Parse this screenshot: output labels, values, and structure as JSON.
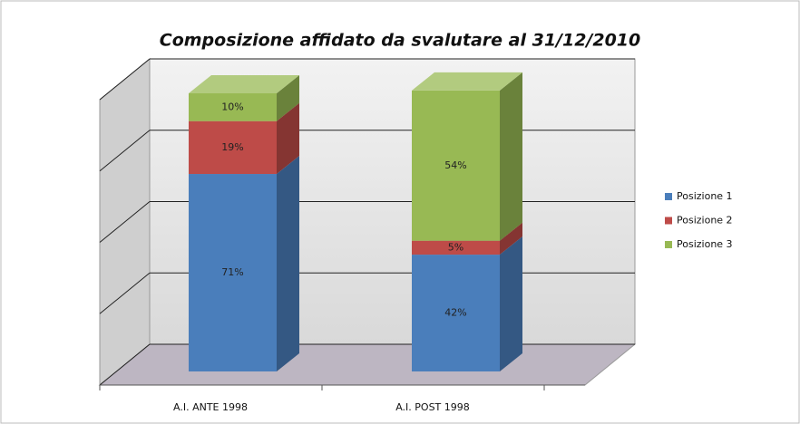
{
  "chart_data": {
    "type": "bar3d_stacked",
    "title": "Composizione affidato da svalutare al 31/12/2010",
    "categories": [
      "A.I. ANTE 1998",
      "A.I. POST 1998"
    ],
    "series": [
      {
        "name": "Posizione 1",
        "color": "#4a7ebb",
        "values": [
          71,
          42
        ],
        "value_labels": [
          "71%",
          "42%"
        ]
      },
      {
        "name": "Posizione 2",
        "color": "#be4b48",
        "values": [
          19,
          5
        ],
        "value_labels": [
          "19%",
          "5%"
        ]
      },
      {
        "name": "Posizione 3",
        "color": "#98b954",
        "values": [
          10,
          54
        ],
        "value_labels": [
          "10%",
          "54%"
        ]
      }
    ],
    "ylim": [
      0,
      100
    ],
    "yticks": [
      0,
      25,
      50,
      75,
      100
    ],
    "grid": true,
    "legend": "right"
  }
}
